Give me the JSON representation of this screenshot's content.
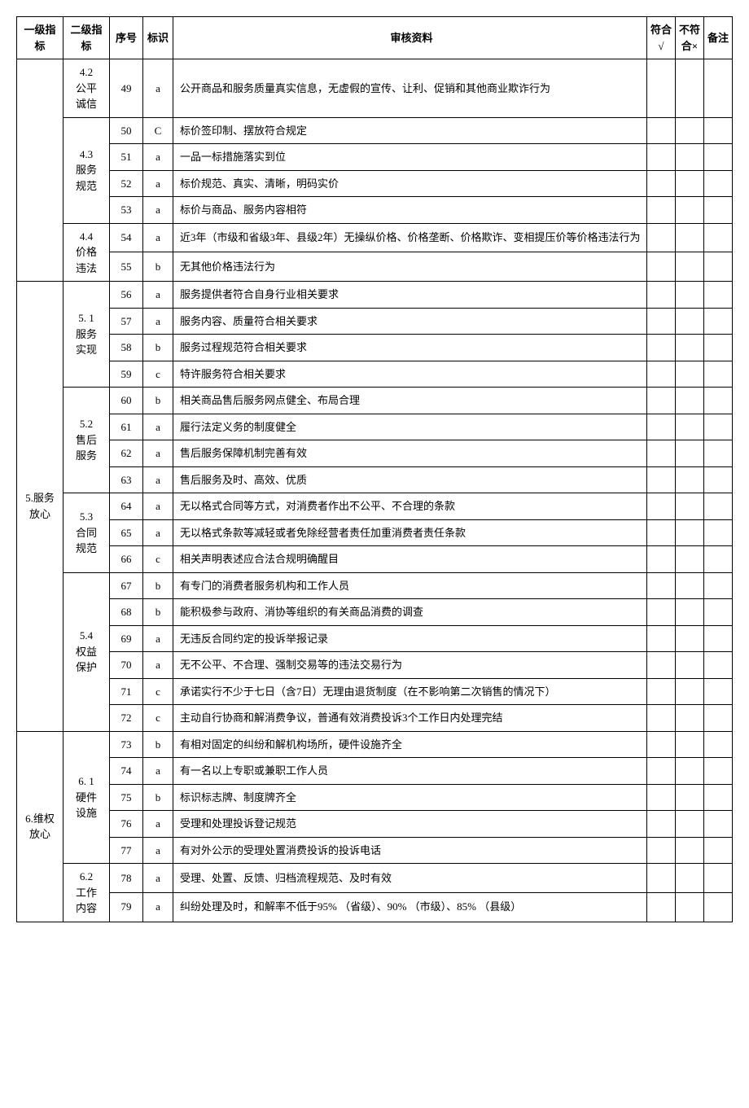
{
  "header": {
    "l1": "一级指标",
    "l2": "二级指标",
    "seq": "序号",
    "mark": "标识",
    "content": "审核资料",
    "c1": "符合√",
    "c2": "不符合×",
    "note": "备注"
  },
  "groups": [
    {
      "l1": "",
      "l2groups": [
        {
          "l2": "4.2\n公平\n诚信",
          "rows": [
            {
              "seq": "49",
              "mark": "a",
              "content": "公开商品和服务质量真实信息，无虚假的宣传、让利、促销和其他商业欺诈行为"
            }
          ]
        },
        {
          "l2": "4.3\n服务\n规范",
          "rows": [
            {
              "seq": "50",
              "mark": "C",
              "content": "标价签印制、摆放符合规定"
            },
            {
              "seq": "51",
              "mark": "a",
              "content": "一品一标措施落实到位"
            },
            {
              "seq": "52",
              "mark": "a",
              "content": "标价规范、真实、清晰，明码实价"
            },
            {
              "seq": "53",
              "mark": "a",
              "content": "标价与商品、服务内容相符"
            }
          ]
        },
        {
          "l2": "4.4\n价格\n违法",
          "rows": [
            {
              "seq": "54",
              "mark": "a",
              "content": "近3年（市级和省级3年、县级2年）无操纵价格、价格垄断、价格欺诈、变相提压价等价格违法行为"
            },
            {
              "seq": "55",
              "mark": "b",
              "content": "无其他价格违法行为"
            }
          ]
        }
      ]
    },
    {
      "l1": "5.服务\n放心",
      "l2groups": [
        {
          "l2": "5. 1\n服务\n实现",
          "rows": [
            {
              "seq": "56",
              "mark": "a",
              "content": "服务提供者符合自身行业相关要求"
            },
            {
              "seq": "57",
              "mark": "a",
              "content": "服务内容、质量符合相关要求"
            },
            {
              "seq": "58",
              "mark": "b",
              "content": "服务过程规范符合相关要求"
            },
            {
              "seq": "59",
              "mark": "c",
              "content": "特许服务符合相关要求"
            }
          ]
        },
        {
          "l2": "5.2\n售后\n服务",
          "rows": [
            {
              "seq": "60",
              "mark": "b",
              "content": "相关商品售后服务网点健全、布局合理"
            },
            {
              "seq": "61",
              "mark": "a",
              "content": "履行法定义务的制度健全"
            },
            {
              "seq": "62",
              "mark": "a",
              "content": "售后服务保障机制完善有效"
            },
            {
              "seq": "63",
              "mark": "a",
              "content": "售后服务及时、高效、优质"
            }
          ]
        },
        {
          "l2": "5.3\n合同\n规范",
          "rows": [
            {
              "seq": "64",
              "mark": "a",
              "content": "无以格式合同等方式，对消费者作出不公平、不合理的条款"
            },
            {
              "seq": "65",
              "mark": "a",
              "content": "无以格式条款等减轻或者免除经营者责任加重消费者责任条款"
            },
            {
              "seq": "66",
              "mark": "c",
              "content": "相关声明表述应合法合规明确醒目"
            }
          ]
        },
        {
          "l2": "5.4\n权益\n保护",
          "rows": [
            {
              "seq": "67",
              "mark": "b",
              "content": "有专门的消费者服务机构和工作人员"
            },
            {
              "seq": "68",
              "mark": "b",
              "content": "能积极参与政府、消协等组织的有关商品消费的调查"
            },
            {
              "seq": "69",
              "mark": "a",
              "content": "无违反合同约定的投诉举报记录"
            },
            {
              "seq": "70",
              "mark": "a",
              "content": "无不公平、不合理、强制交易等的违法交易行为"
            },
            {
              "seq": "71",
              "mark": "c",
              "content": "承诺实行不少于七日（含7日）无理由退货制度（在不影响第二次销售的情况下）"
            },
            {
              "seq": "72",
              "mark": "c",
              "content": "主动自行协商和解消费争议，普通有效消费投诉3个工作日内处理完结"
            }
          ]
        }
      ]
    },
    {
      "l1": "6.维权\n放心",
      "l2groups": [
        {
          "l2": "6. 1\n硬件\n设施",
          "rows": [
            {
              "seq": "73",
              "mark": "b",
              "content": "有相对固定的纠纷和解机构场所，硬件设施齐全"
            },
            {
              "seq": "74",
              "mark": "a",
              "content": "有一名以上专职或兼职工作人员"
            },
            {
              "seq": "75",
              "mark": "b",
              "content": "标识标志牌、制度牌齐全"
            },
            {
              "seq": "76",
              "mark": "a",
              "content": "受理和处理投诉登记规范"
            },
            {
              "seq": "77",
              "mark": "a",
              "content": "有对外公示的受理处置消费投诉的投诉电话"
            }
          ]
        },
        {
          "l2": "6.2\n工作\n内容",
          "rows": [
            {
              "seq": "78",
              "mark": "a",
              "content": "受理、处置、反馈、归档流程规范、及时有效"
            },
            {
              "seq": "79",
              "mark": "a",
              "content": "纠纷处理及时，和解率不低于95% （省级）、90% （市级）、85% （县级）"
            }
          ]
        }
      ]
    }
  ]
}
